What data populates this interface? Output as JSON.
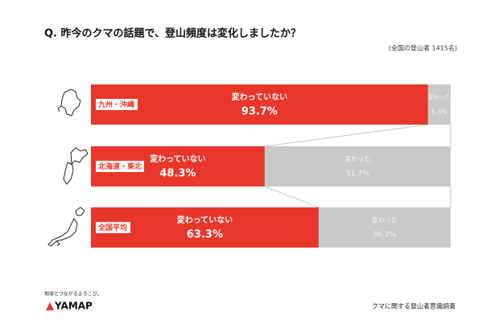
{
  "chart_data": {
    "type": "bar",
    "orientation": "horizontal",
    "stacked": true,
    "title": "Q. 昨今のクマの話題で、登山頻度は変化しましたか？",
    "subtitle": "(全国の登山者 1415名)",
    "source": "クマに関する登山者意識調査",
    "categories": [
      "九州・沖縄",
      "北海道・東北",
      "全国平均"
    ],
    "series": [
      {
        "name": "変わっていない",
        "color": "#e8372a",
        "values": [
          93.7,
          48.3,
          63.3
        ],
        "value_labels": [
          "93.7%",
          "48.3%",
          "63.3%"
        ]
      },
      {
        "name": "変わった",
        "color": "#c9c9c9",
        "values": [
          6.3,
          51.7,
          36.7
        ],
        "value_labels": [
          "6.3%",
          "51.7%",
          "36.7%"
        ]
      }
    ],
    "xlim": [
      0,
      100
    ]
  },
  "brand": {
    "tagline": "地球とつながるよろこび。",
    "name": "YAMAP"
  }
}
